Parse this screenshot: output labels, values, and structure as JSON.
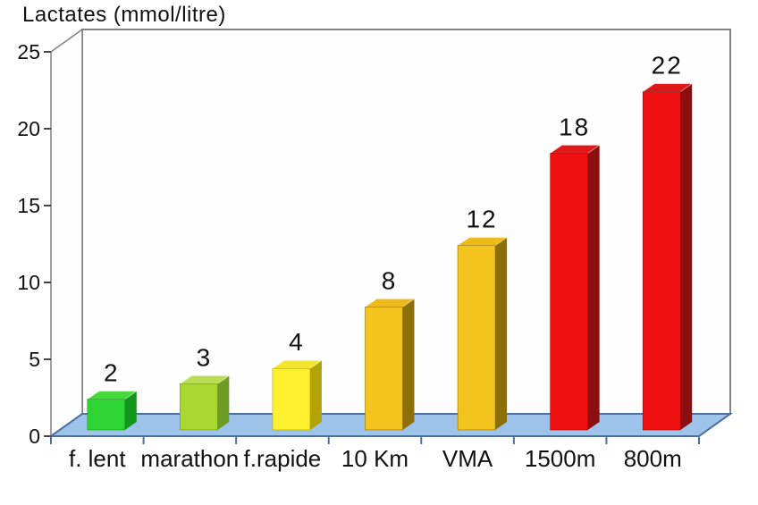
{
  "title": "Lactates (mmol/litre)",
  "chart_data": {
    "type": "bar",
    "projection": "3d",
    "title": "Lactates (mmol/litre)",
    "xlabel": "",
    "ylabel": "Lactates (mmol/litre)",
    "categories": [
      "f. lent",
      "marathon",
      "f.rapide",
      "10 Km",
      "VMA",
      "1500m",
      "800m"
    ],
    "values": [
      2,
      3,
      4,
      8,
      12,
      18,
      22
    ],
    "data_labels": [
      "2",
      "3",
      "4",
      "8",
      "12",
      "18",
      "22"
    ],
    "show_data_labels": true,
    "y_ticks": [
      0,
      5,
      10,
      15,
      20,
      25
    ],
    "ylim": [
      0,
      25
    ],
    "grid": false,
    "legend_position": "none",
    "bar_colors": [
      {
        "front": "#2ed434",
        "top": "#47d83b",
        "side": "#12961c"
      },
      {
        "front": "#a9d832",
        "top": "#b9dc52",
        "side": "#6d9c22"
      },
      {
        "front": "#fdf02c",
        "top": "#f2e72e",
        "side": "#b2a308"
      },
      {
        "front": "#f4c41e",
        "top": "#edba1a",
        "side": "#8d6f0a"
      },
      {
        "front": "#f4c41e",
        "top": "#edba1a",
        "side": "#8d6f0a"
      },
      {
        "front": "#ee1010",
        "top": "#de1717",
        "side": "#8d0e0e"
      },
      {
        "front": "#ee1010",
        "top": "#de1717",
        "side": "#8d0e0e"
      }
    ],
    "colors": {
      "floor": "#9fc4ec",
      "wall_fill": "#fefefe",
      "wall_border": "#828282",
      "axis": "#4f6f9f",
      "tick": "#444444",
      "text": "#111111",
      "background": "#ffffff"
    }
  }
}
